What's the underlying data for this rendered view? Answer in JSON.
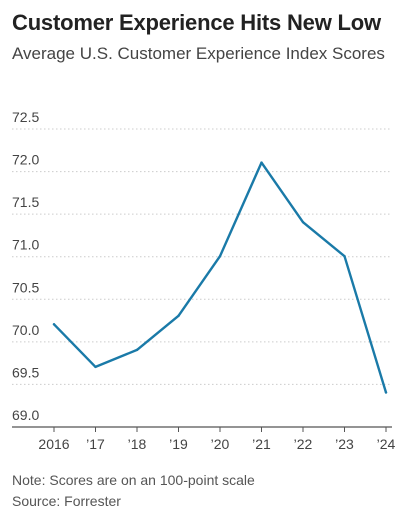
{
  "chart_data": {
    "type": "line",
    "title": "Customer Experience Hits New Low",
    "subtitle": "Average U.S. Customer Experience Index Scores",
    "categories": [
      "2016",
      "’17",
      "’18",
      "’19",
      "’20",
      "’21",
      "’22",
      "’23",
      "’24"
    ],
    "values": [
      70.1,
      69.6,
      69.8,
      70.2,
      70.9,
      72.0,
      71.3,
      70.9,
      69.3
    ],
    "y_ticks": [
      "72.5",
      "72.0",
      "71.5",
      "71.0",
      "70.5",
      "70.0",
      "69.5",
      "69.0"
    ],
    "ylim": [
      69.0,
      72.5
    ],
    "xlabel": "",
    "ylabel": "",
    "grid": true,
    "line_color": "#1a7aa8"
  },
  "notes": {
    "note": "Note: Scores are on an 100-point scale",
    "source": "Source: Forrester"
  }
}
